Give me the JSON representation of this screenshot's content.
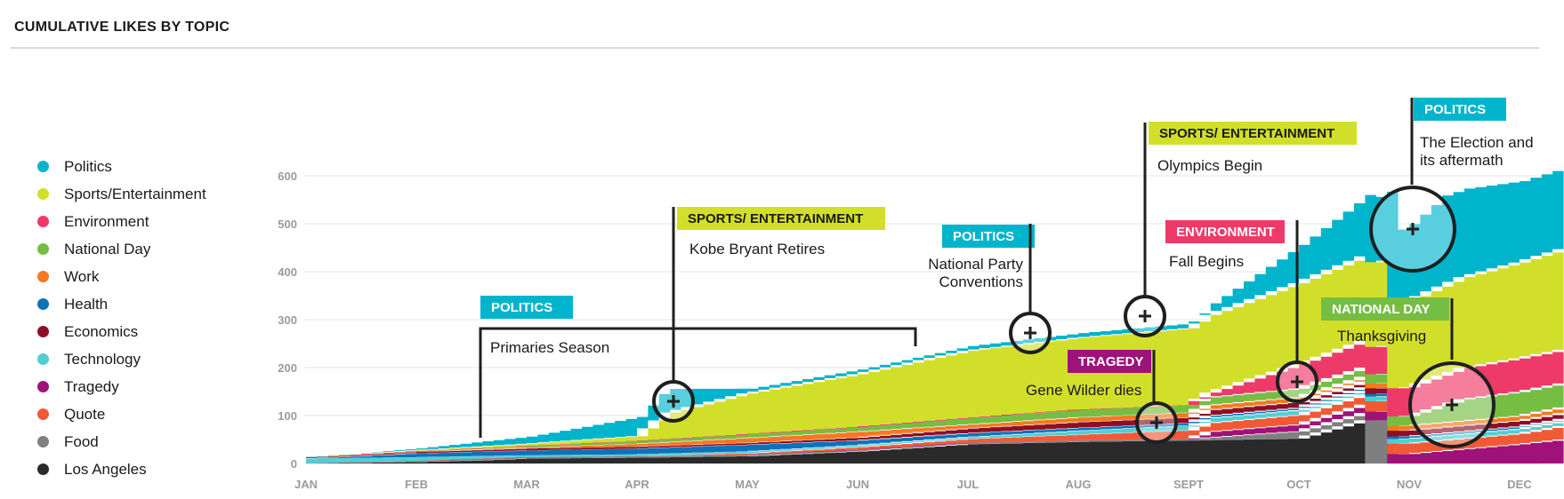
{
  "title": "CUMULATIVE LIKES BY TOPIC",
  "legend": [
    {
      "label": "Politics",
      "color": "#00b4cc"
    },
    {
      "label": "Sports/Entertainment",
      "color": "#d2df2a"
    },
    {
      "label": "Environment",
      "color": "#ee3a68"
    },
    {
      "label": "National Day",
      "color": "#76bd43"
    },
    {
      "label": "Work",
      "color": "#f47920"
    },
    {
      "label": "Health",
      "color": "#0d72b9"
    },
    {
      "label": "Economics",
      "color": "#8e0e26"
    },
    {
      "label": "Technology",
      "color": "#4fcfd4"
    },
    {
      "label": "Tragedy",
      "color": "#9e1279"
    },
    {
      "label": "Quote",
      "color": "#f15a35"
    },
    {
      "label": "Food",
      "color": "#7f7f7f"
    },
    {
      "label": "Los Angeles",
      "color": "#2a2a2a"
    }
  ],
  "chart_data": {
    "type": "area",
    "stacked": true,
    "title": "CUMULATIVE LIKES BY TOPIC",
    "xlabel": "",
    "ylabel": "",
    "ylim": [
      0,
      600
    ],
    "y_ticks": [
      "0",
      "100",
      "200",
      "300",
      "400",
      "500",
      "600"
    ],
    "x_ticks": [
      "JAN",
      "FEB",
      "MAR",
      "APR",
      "MAY",
      "JUN",
      "JUL",
      "AUG",
      "SEPT",
      "OCT",
      "NOV",
      "DEC"
    ],
    "grid": true,
    "legend_position": "left",
    "x_unit": "month index (0 = JAN)",
    "series": [
      {
        "name": "Los Angeles",
        "color": "#2a2a2a",
        "x": [
          0,
          1,
          1.5,
          2,
          3,
          4,
          5,
          6,
          7,
          8,
          9,
          9.6,
          9.61,
          11.4
        ],
        "y": [
          0,
          3,
          6,
          10,
          12,
          15,
          25,
          40,
          45,
          48,
          52,
          90,
          0,
          0
        ]
      },
      {
        "name": "Food",
        "color": "#7f7f7f",
        "x": [
          0,
          1,
          1.5,
          2,
          3,
          4,
          5,
          6,
          7,
          8,
          9,
          9.6,
          9.61,
          9.8,
          9.81,
          11.4
        ],
        "y": [
          0,
          2,
          3,
          3,
          3,
          3,
          3,
          3,
          3,
          3,
          15,
          15,
          90,
          90,
          0,
          0
        ]
      },
      {
        "name": "Tragedy",
        "color": "#9e1279",
        "x": [
          0,
          7,
          8,
          8.2,
          9,
          10,
          11,
          11.4
        ],
        "y": [
          0,
          0,
          0,
          12,
          14,
          20,
          40,
          50
        ]
      },
      {
        "name": "Quote",
        "color": "#f15a35",
        "x": [
          0,
          3,
          4,
          5,
          6,
          7,
          8,
          9,
          10,
          11,
          11.4
        ],
        "y": [
          0,
          0,
          3,
          6,
          8,
          12,
          18,
          20,
          22,
          22,
          28
        ]
      },
      {
        "name": "Technology",
        "color": "#4fcfd4",
        "x": [
          0,
          1,
          2,
          3,
          4,
          5,
          6,
          7,
          8,
          9,
          10,
          11,
          11.4
        ],
        "y": [
          10,
          8,
          4,
          4,
          4,
          4,
          4,
          8,
          10,
          10,
          10,
          10,
          10
        ]
      },
      {
        "name": "Health",
        "color": "#0d72b9",
        "x": [
          0,
          1,
          2,
          3,
          4,
          5,
          6,
          7,
          8,
          9,
          10,
          11,
          11.4
        ],
        "y": [
          0,
          8,
          10,
          12,
          14,
          10,
          8,
          6,
          5,
          5,
          5,
          5,
          5
        ]
      },
      {
        "name": "Economics",
        "color": "#8e0e26",
        "x": [
          0,
          1,
          2,
          3,
          4,
          5,
          6,
          7,
          8,
          9,
          10,
          11,
          11.4
        ],
        "y": [
          2,
          3,
          4,
          4,
          4,
          6,
          10,
          12,
          12,
          12,
          12,
          12,
          12
        ]
      },
      {
        "name": "Work",
        "color": "#f47920",
        "x": [
          0,
          1,
          2,
          3,
          4,
          5,
          6,
          7,
          8,
          9,
          10,
          11,
          11.4
        ],
        "y": [
          0,
          0,
          2,
          6,
          10,
          12,
          8,
          10,
          10,
          10,
          10,
          10,
          12
        ]
      },
      {
        "name": "National Day",
        "color": "#76bd43",
        "x": [
          0,
          1,
          2,
          3,
          4,
          5,
          6,
          7,
          8,
          9,
          10,
          10.5,
          11,
          11.4
        ],
        "y": [
          0,
          1,
          3,
          6,
          8,
          10,
          14,
          16,
          16,
          18,
          20,
          45,
          50,
          50
        ]
      },
      {
        "name": "Environment",
        "color": "#ee3a68",
        "x": [
          0,
          1,
          2,
          3,
          4,
          5,
          6,
          7,
          8,
          9,
          10,
          11,
          11.4
        ],
        "y": [
          0,
          0,
          0,
          0,
          0,
          0,
          0,
          0,
          0,
          50,
          60,
          70,
          70
        ]
      },
      {
        "name": "Sports/Entertainment",
        "color": "#d2df2a",
        "x": [
          0,
          2,
          3,
          3.3,
          4,
          5,
          6,
          7,
          8,
          9,
          10,
          11,
          11.4
        ],
        "y": [
          0,
          5,
          10,
          55,
          85,
          110,
          140,
          150,
          160,
          170,
          180,
          200,
          210
        ]
      },
      {
        "name": "Politics",
        "color": "#00b4cc",
        "x": [
          0,
          1,
          2,
          3,
          3.2,
          4,
          5,
          6,
          7,
          8,
          9,
          10,
          10.3,
          11,
          11.4
        ],
        "y": [
          0,
          4,
          15,
          40,
          55,
          10,
          10,
          10,
          10,
          10,
          80,
          160,
          190,
          170,
          170
        ]
      }
    ],
    "annotations": [
      {
        "tag": "POLITICS",
        "tag_color": "#00b4cc",
        "text": "Primaries Season",
        "x_range": [
          1.6,
          5.6
        ]
      },
      {
        "tag": "SPORTS/ ENTERTAINMENT",
        "tag_color": "#d2df2a",
        "text": "Kobe Bryant Retires",
        "x": 3.4,
        "y": 130
      },
      {
        "tag": "POLITICS",
        "tag_color": "#00b4cc",
        "text": "National Party Conventions",
        "x": 6.7,
        "y": 272
      },
      {
        "tag": "SPORTS/ ENTERTAINMENT",
        "tag_color": "#d2df2a",
        "text": "Olympics Begin",
        "x": 7.8,
        "y": 303
      },
      {
        "tag": "TRAGEDY",
        "tag_color": "#9e1279",
        "text": "Gene Wilder dies",
        "x": 7.9,
        "y": 88
      },
      {
        "tag": "ENVIRONMENT",
        "tag_color": "#ee3a68",
        "text": "Fall Begins",
        "x": 9.2,
        "y": 168
      },
      {
        "tag": "POLITICS",
        "tag_color": "#00b4cc",
        "text": "The Election and its aftermath",
        "x": 10.25,
        "y": 485
      },
      {
        "tag": "NATIONAL DAY",
        "tag_color": "#76bd43",
        "text": "Thanksgiving",
        "x": 10.3,
        "y": 120
      }
    ]
  }
}
